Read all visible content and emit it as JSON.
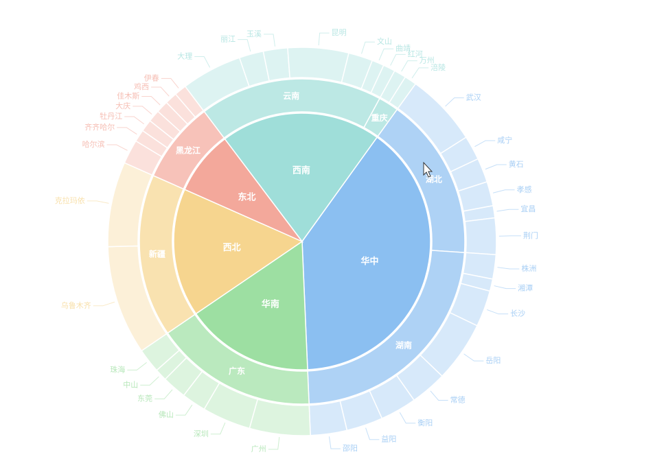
{
  "chart_data": {
    "type": "sunburst",
    "data": [
      {
        "name": "西南",
        "color": "#9fded9",
        "value": 20,
        "children": [
          {
            "name": "云南",
            "value": 18,
            "children": [
              {
                "name": "大理",
                "value": 5
              },
              {
                "name": "丽江",
                "value": 2
              },
              {
                "name": "玉溪",
                "value": 2
              },
              {
                "name": "昆明",
                "value": 5
              },
              {
                "name": "文山",
                "value": 2
              },
              {
                "name": "曲靖",
                "value": 1
              },
              {
                "name": "红河",
                "value": 1
              }
            ]
          },
          {
            "name": "重庆",
            "value": 2,
            "children": [
              {
                "name": "万州",
                "value": 1
              },
              {
                "name": "涪陵",
                "value": 1
              }
            ]
          }
        ]
      },
      {
        "name": "华中",
        "color": "#8bbff1",
        "value": 39,
        "children": [
          {
            "name": "湖北",
            "value": 16,
            "children": [
              {
                "name": "武汉",
                "value": 6
              },
              {
                "name": "咸宁",
                "value": 2
              },
              {
                "name": "黄石",
                "value": 2
              },
              {
                "name": "孝感",
                "value": 2
              },
              {
                "name": "宜昌",
                "value": 1
              },
              {
                "name": "荆门",
                "value": 3
              }
            ]
          },
          {
            "name": "湖南",
            "value": 23,
            "children": [
              {
                "name": "株洲",
                "value": 2
              },
              {
                "name": "湘潭",
                "value": 1
              },
              {
                "name": "长沙",
                "value": 3
              },
              {
                "name": "岳阳",
                "value": 5
              },
              {
                "name": "常德",
                "value": 3
              },
              {
                "name": "衡阳",
                "value": 3
              },
              {
                "name": "益阳",
                "value": 3
              },
              {
                "name": "邵阳",
                "value": 3
              }
            ]
          }
        ]
      },
      {
        "name": "华南",
        "color": "#9ddfa2",
        "value": 16,
        "children": [
          {
            "name": "广东",
            "value": 16,
            "children": [
              {
                "name": "广州",
                "value": 5
              },
              {
                "name": "深圳",
                "value": 4
              },
              {
                "name": "佛山",
                "value": 2
              },
              {
                "name": "东莞",
                "value": 2
              },
              {
                "name": "中山",
                "value": 1
              },
              {
                "name": "珠海",
                "value": 2
              }
            ]
          }
        ]
      },
      {
        "name": "西北",
        "color": "#f6d58f",
        "value": 16,
        "children": [
          {
            "name": "新疆",
            "value": 16,
            "children": [
              {
                "name": "乌鲁木齐",
                "value": 9
              },
              {
                "name": "克拉玛依",
                "value": 7
              }
            ]
          }
        ]
      },
      {
        "name": "东北",
        "color": "#f3a89b",
        "value": 8,
        "children": [
          {
            "name": "黑龙江",
            "value": 8,
            "children": [
              {
                "name": "哈尔滨",
                "value": 2
              },
              {
                "name": "齐齐哈尔",
                "value": 1
              },
              {
                "name": "牡丹江",
                "value": 1
              },
              {
                "name": "大庆",
                "value": 1
              },
              {
                "name": "佳木斯",
                "value": 1
              },
              {
                "name": "鸡西",
                "value": 1
              },
              {
                "name": "伊春",
                "value": 1
              }
            ]
          }
        ]
      }
    ]
  }
}
